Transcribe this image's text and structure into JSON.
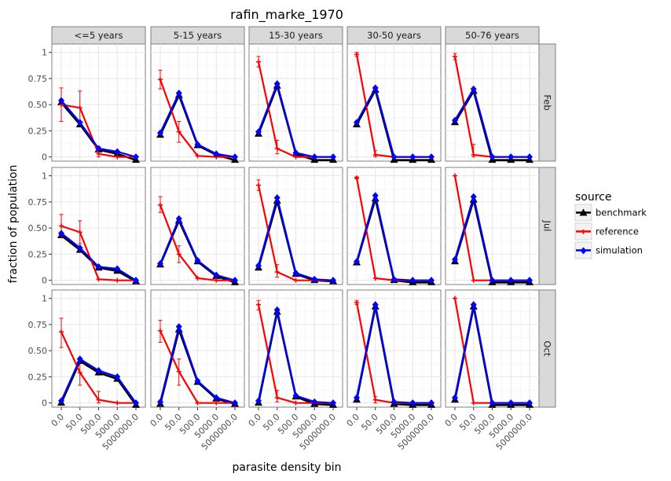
{
  "chart_data": {
    "type": "line",
    "title": "rafin_marke_1970",
    "xlabel": "parasite density bin",
    "ylabel": "fraction of population",
    "x_categories": [
      "0.0",
      "50.0",
      "500.0",
      "5000.0",
      "5000000.0"
    ],
    "ylim": [
      -0.04,
      1.08
    ],
    "y_ticks": [
      0,
      0.25,
      0.5,
      0.75,
      1
    ],
    "y_tick_labels": [
      "0",
      "0.25",
      "0.50",
      "0.75",
      "1"
    ],
    "grid": true,
    "legend": {
      "title": "source",
      "position": "right",
      "entries": [
        {
          "key": "benchmark",
          "label": "benchmark",
          "color": "#000000",
          "marker": "triangle"
        },
        {
          "key": "reference",
          "label": "reference",
          "color": "#ff0000",
          "marker": "plus"
        },
        {
          "key": "simulation",
          "label": "simulation",
          "color": "#0000ff",
          "marker": "diamond"
        }
      ]
    },
    "columns": [
      "<=5 years",
      "5-15 years",
      "15-30 years",
      "30-50 years",
      "50-76 years"
    ],
    "rows": [
      "Feb",
      "Jul",
      "Oct"
    ],
    "panels": [
      [
        {
          "benchmark": [
            0.52,
            0.31,
            0.07,
            0.03,
            -0.03
          ],
          "simulation": [
            0.54,
            0.33,
            0.08,
            0.05,
            0.0
          ],
          "reference": [
            0.5,
            0.47,
            0.03,
            0.0,
            0.0
          ],
          "reference_err": [
            [
              0.34,
              0.66
            ],
            [
              0.31,
              0.63
            ],
            [
              0.0,
              0.1
            ],
            null,
            null
          ]
        },
        {
          "benchmark": [
            0.21,
            0.59,
            0.11,
            0.02,
            -0.03
          ],
          "simulation": [
            0.23,
            0.61,
            0.12,
            0.03,
            0.0
          ],
          "reference": [
            0.74,
            0.24,
            0.01,
            0.0,
            0.0
          ],
          "reference_err": [
            [
              0.65,
              0.83
            ],
            [
              0.14,
              0.34
            ],
            null,
            null,
            null
          ]
        },
        {
          "benchmark": [
            0.22,
            0.68,
            0.03,
            -0.03,
            -0.03
          ],
          "simulation": [
            0.24,
            0.7,
            0.04,
            0.0,
            0.0
          ],
          "reference": [
            0.91,
            0.08,
            0.0,
            0.0,
            0.0
          ],
          "reference_err": [
            [
              0.86,
              0.96
            ],
            [
              0.03,
              0.16
            ],
            null,
            null,
            null
          ]
        },
        {
          "benchmark": [
            0.31,
            0.64,
            -0.03,
            -0.03,
            -0.03
          ],
          "simulation": [
            0.33,
            0.66,
            0.0,
            0.0,
            0.0
          ],
          "reference": [
            0.98,
            0.02,
            0.0,
            0.0,
            0.0
          ],
          "reference_err": [
            [
              0.96,
              1.0
            ],
            [
              0.0,
              0.06
            ],
            null,
            null,
            null
          ]
        },
        {
          "benchmark": [
            0.33,
            0.63,
            -0.03,
            -0.03,
            -0.03
          ],
          "simulation": [
            0.35,
            0.65,
            0.0,
            0.0,
            0.0
          ],
          "reference": [
            0.96,
            0.02,
            0.0,
            0.0,
            0.0
          ],
          "reference_err": [
            [
              0.93,
              0.99
            ],
            [
              0.0,
              0.12
            ],
            null,
            null,
            null
          ]
        }
      ],
      [
        {
          "benchmark": [
            0.43,
            0.29,
            0.12,
            0.09,
            -0.01
          ],
          "simulation": [
            0.45,
            0.31,
            0.13,
            0.11,
            0.0
          ],
          "reference": [
            0.52,
            0.46,
            0.01,
            0.0,
            0.0
          ],
          "reference_err": [
            [
              0.42,
              0.63
            ],
            [
              0.35,
              0.57
            ],
            null,
            null,
            null
          ]
        },
        {
          "benchmark": [
            0.15,
            0.57,
            0.18,
            0.04,
            -0.02
          ],
          "simulation": [
            0.16,
            0.59,
            0.19,
            0.05,
            0.0
          ],
          "reference": [
            0.72,
            0.25,
            0.02,
            0.0,
            0.0
          ],
          "reference_err": [
            [
              0.65,
              0.8
            ],
            [
              0.17,
              0.33
            ],
            null,
            null,
            null
          ]
        },
        {
          "benchmark": [
            0.12,
            0.76,
            0.06,
            0.0,
            -0.01
          ],
          "simulation": [
            0.14,
            0.79,
            0.07,
            0.01,
            0.0
          ],
          "reference": [
            0.91,
            0.08,
            0.0,
            0.0,
            0.0
          ],
          "reference_err": [
            [
              0.86,
              0.96
            ],
            [
              0.03,
              0.15
            ],
            null,
            null,
            null
          ]
        },
        {
          "benchmark": [
            0.17,
            0.78,
            0.0,
            -0.02,
            -0.02
          ],
          "simulation": [
            0.18,
            0.81,
            0.01,
            0.0,
            0.0
          ],
          "reference": [
            0.98,
            0.02,
            0.0,
            0.0,
            0.0
          ],
          "reference_err": [
            [
              0.97,
              0.99
            ],
            null,
            null,
            null,
            null
          ]
        },
        {
          "benchmark": [
            0.18,
            0.77,
            -0.02,
            -0.02,
            -0.02
          ],
          "simulation": [
            0.2,
            0.8,
            0.0,
            0.0,
            0.0
          ],
          "reference": [
            1.0,
            0.0,
            0.0,
            0.0,
            0.0
          ],
          "reference_err": [
            null,
            null,
            null,
            null,
            null
          ]
        }
      ],
      [
        {
          "benchmark": [
            0.0,
            0.4,
            0.29,
            0.23,
            -0.02
          ],
          "simulation": [
            0.02,
            0.42,
            0.31,
            0.25,
            0.0
          ],
          "reference": [
            0.68,
            0.29,
            0.03,
            0.0,
            0.0
          ],
          "reference_err": [
            [
              0.53,
              0.81
            ],
            [
              0.17,
              0.43
            ],
            [
              0.0,
              0.11
            ],
            null,
            null
          ]
        },
        {
          "benchmark": [
            -0.01,
            0.7,
            0.2,
            0.04,
            -0.01
          ],
          "simulation": [
            0.01,
            0.73,
            0.21,
            0.05,
            0.0
          ],
          "reference": [
            0.69,
            0.3,
            0.0,
            0.0,
            0.0
          ],
          "reference_err": [
            [
              0.58,
              0.79
            ],
            [
              0.17,
              0.42
            ],
            null,
            null,
            null
          ]
        },
        {
          "benchmark": [
            0.0,
            0.87,
            0.06,
            -0.01,
            -0.02
          ],
          "simulation": [
            0.02,
            0.89,
            0.07,
            0.01,
            0.0
          ],
          "reference": [
            0.94,
            0.05,
            0.0,
            0.0,
            0.0
          ],
          "reference_err": [
            [
              0.89,
              0.98
            ],
            [
              0.01,
              0.12
            ],
            null,
            null,
            null
          ]
        },
        {
          "benchmark": [
            0.03,
            0.92,
            -0.01,
            -0.02,
            -0.02
          ],
          "simulation": [
            0.05,
            0.94,
            0.01,
            0.0,
            0.0
          ],
          "reference": [
            0.96,
            0.03,
            0.0,
            0.0,
            0.0
          ],
          "reference_err": [
            [
              0.94,
              0.98
            ],
            [
              0.0,
              0.06
            ],
            null,
            null,
            null
          ]
        },
        {
          "benchmark": [
            0.03,
            0.92,
            -0.02,
            -0.02,
            -0.02
          ],
          "simulation": [
            0.05,
            0.94,
            0.0,
            0.0,
            0.0
          ],
          "reference": [
            1.0,
            0.0,
            0.0,
            0.0,
            0.0
          ],
          "reference_err": [
            null,
            null,
            null,
            null,
            null
          ]
        }
      ]
    ]
  }
}
